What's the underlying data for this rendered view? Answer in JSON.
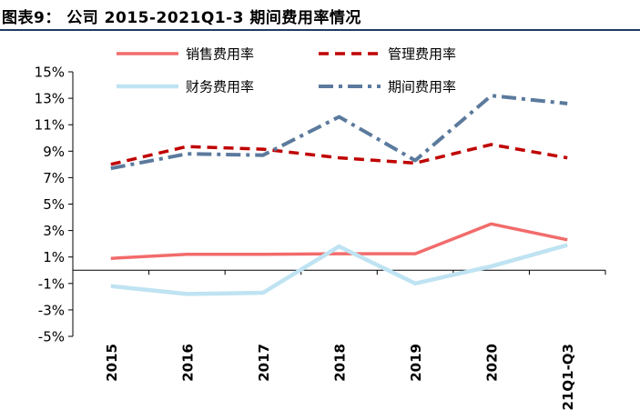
{
  "title": "图表9：    公司 2015-2021Q1-3 期间费用率情况",
  "colors": {
    "sales": "#f26b6b",
    "management": "#c00000",
    "finance": "#bfe3f2",
    "period": "#5b7a9d",
    "title_rule": "#1f3a60"
  },
  "chart_data": {
    "type": "line",
    "title": "公司 2015-2021Q1-3 期间费用率情况",
    "xlabel": "",
    "ylabel": "",
    "categories": [
      "2015",
      "2016",
      "2017",
      "2018",
      "2019",
      "2020",
      "2021Q1-Q3"
    ],
    "ylim": [
      -5,
      15
    ],
    "yticks": [
      -5,
      -3,
      -1,
      1,
      3,
      5,
      7,
      9,
      11,
      13,
      15
    ],
    "ytick_labels": [
      "-5%",
      "-3%",
      "-1%",
      "1%",
      "3%",
      "5%",
      "7%",
      "9%",
      "11%",
      "13%",
      "15%"
    ],
    "legend_position": "top",
    "grid": false,
    "series": [
      {
        "name": "销售费用率",
        "style": "solid",
        "values": [
          0.9,
          1.2,
          1.2,
          1.25,
          1.25,
          3.5,
          2.3
        ]
      },
      {
        "name": "管理费用率",
        "style": "dashed",
        "values": [
          8.0,
          9.35,
          9.15,
          8.5,
          8.1,
          9.5,
          8.5
        ]
      },
      {
        "name": "财务费用率",
        "style": "solid",
        "values": [
          -1.2,
          -1.8,
          -1.7,
          1.8,
          -1.0,
          0.3,
          1.9
        ]
      },
      {
        "name": "期间费用率",
        "style": "dashdot",
        "values": [
          7.7,
          8.8,
          8.7,
          11.6,
          8.3,
          13.2,
          12.6
        ]
      }
    ]
  }
}
